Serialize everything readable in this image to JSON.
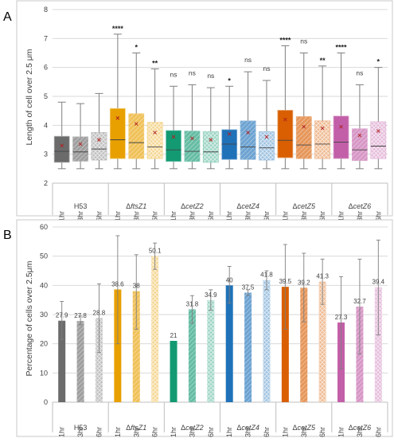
{
  "colors": {
    "H53": "#6b6b6b",
    "ftsZ1": "#e8a000",
    "cetZ2": "#139a73",
    "cetZ4": "#1f72b8",
    "cetZ5": "#d95f02",
    "cetZ6": "#c25fa8"
  },
  "chart_data": [
    {
      "panel_label": "A",
      "type": "box",
      "ylabel": "Length of cell over 2.5 μm",
      "ylim": [
        2,
        8
      ],
      "yticks": [
        2,
        3,
        4,
        5,
        6,
        7,
        8
      ],
      "grid": true,
      "groups": [
        {
          "name": "H53",
          "delta": "",
          "color_key": "H53"
        },
        {
          "name": "ftsZ1",
          "delta": "Δ",
          "color_key": "ftsZ1"
        },
        {
          "name": "cetZ2",
          "delta": "Δ",
          "color_key": "cetZ2"
        },
        {
          "name": "cetZ4",
          "delta": "Δ",
          "color_key": "cetZ4"
        },
        {
          "name": "cetZ5",
          "delta": "Δ",
          "color_key": "cetZ5"
        },
        {
          "name": "cetZ6",
          "delta": "Δ",
          "color_key": "cetZ6"
        }
      ],
      "subcategories": [
        "1hr",
        "3hr",
        "6hr"
      ],
      "boxes": [
        {
          "group": 0,
          "time": 0,
          "min": 2.5,
          "q1": 2.72,
          "median": 3.1,
          "q3": 3.62,
          "max": 4.8,
          "mean": 3.3,
          "sig": ""
        },
        {
          "group": 0,
          "time": 1,
          "min": 2.5,
          "q1": 2.76,
          "median": 3.08,
          "q3": 3.6,
          "max": 4.75,
          "mean": 3.35,
          "sig": ""
        },
        {
          "group": 0,
          "time": 2,
          "min": 2.5,
          "q1": 2.8,
          "median": 3.18,
          "q3": 3.75,
          "max": 5.1,
          "mean": 3.5,
          "sig": ""
        },
        {
          "group": 1,
          "time": 0,
          "min": 2.5,
          "q1": 2.85,
          "median": 3.5,
          "q3": 4.58,
          "max": 7.15,
          "mean": 4.25,
          "sig": "****"
        },
        {
          "group": 1,
          "time": 1,
          "min": 2.5,
          "q1": 2.85,
          "median": 3.4,
          "q3": 4.4,
          "max": 6.5,
          "mean": 4.05,
          "sig": "*"
        },
        {
          "group": 1,
          "time": 2,
          "min": 2.5,
          "q1": 2.85,
          "median": 3.25,
          "q3": 4.1,
          "max": 5.95,
          "mean": 3.75,
          "sig": "**"
        },
        {
          "group": 2,
          "time": 0,
          "min": 2.5,
          "q1": 2.75,
          "median": 3.15,
          "q3": 3.82,
          "max": 5.35,
          "mean": 3.6,
          "sig": "ns"
        },
        {
          "group": 2,
          "time": 1,
          "min": 2.5,
          "q1": 2.75,
          "median": 3.1,
          "q3": 3.8,
          "max": 5.4,
          "mean": 3.55,
          "sig": "ns"
        },
        {
          "group": 2,
          "time": 2,
          "min": 2.5,
          "q1": 2.72,
          "median": 3.08,
          "q3": 3.78,
          "max": 5.3,
          "mean": 3.5,
          "sig": "ns"
        },
        {
          "group": 3,
          "time": 0,
          "min": 2.5,
          "q1": 2.82,
          "median": 3.35,
          "q3": 3.85,
          "max": 5.35,
          "mean": 3.7,
          "sig": "*"
        },
        {
          "group": 3,
          "time": 1,
          "min": 2.5,
          "q1": 2.82,
          "median": 3.25,
          "q3": 4.15,
          "max": 5.85,
          "mean": 3.75,
          "sig": "ns"
        },
        {
          "group": 3,
          "time": 2,
          "min": 2.5,
          "q1": 2.8,
          "median": 3.22,
          "q3": 3.78,
          "max": 5.55,
          "mean": 3.6,
          "sig": "ns"
        },
        {
          "group": 4,
          "time": 0,
          "min": 2.5,
          "q1": 2.88,
          "median": 3.48,
          "q3": 4.52,
          "max": 6.75,
          "mean": 4.2,
          "sig": "****"
        },
        {
          "group": 4,
          "time": 1,
          "min": 2.5,
          "q1": 2.85,
          "median": 3.32,
          "q3": 4.3,
          "max": 6.5,
          "mean": 3.95,
          "sig": "ns"
        },
        {
          "group": 4,
          "time": 2,
          "min": 2.5,
          "q1": 2.85,
          "median": 3.35,
          "q3": 4.15,
          "max": 6.05,
          "mean": 3.9,
          "sig": "**"
        },
        {
          "group": 5,
          "time": 0,
          "min": 2.5,
          "q1": 2.85,
          "median": 3.42,
          "q3": 4.32,
          "max": 6.5,
          "mean": 3.95,
          "sig": "****"
        },
        {
          "group": 5,
          "time": 1,
          "min": 2.5,
          "q1": 2.78,
          "median": 3.15,
          "q3": 3.88,
          "max": 5.4,
          "mean": 3.65,
          "sig": "ns"
        },
        {
          "group": 5,
          "time": 2,
          "min": 2.5,
          "q1": 2.85,
          "median": 3.28,
          "q3": 4.12,
          "max": 6.0,
          "mean": 3.8,
          "sig": "*"
        }
      ]
    },
    {
      "panel_label": "B",
      "type": "bar",
      "ylabel": "Percentage of cells over 2.5μm",
      "ylim": [
        0,
        60
      ],
      "yticks": [
        0,
        10,
        20,
        30,
        40,
        50,
        60
      ],
      "grid": true,
      "groups": [
        {
          "name": "H53",
          "delta": "",
          "color_key": "H53"
        },
        {
          "name": "ftsZ1",
          "delta": "Δ",
          "color_key": "ftsZ1"
        },
        {
          "name": "cetZ2",
          "delta": "Δ",
          "color_key": "cetZ2"
        },
        {
          "name": "cetZ4",
          "delta": "Δ",
          "color_key": "cetZ4"
        },
        {
          "name": "cetZ5",
          "delta": "Δ",
          "color_key": "cetZ5"
        },
        {
          "name": "cetZ6",
          "delta": "Δ",
          "color_key": "cetZ6"
        }
      ],
      "subcategories": [
        "1hr",
        "3hr",
        "6hr"
      ],
      "bars": [
        {
          "group": 0,
          "time": 0,
          "value": 27.9,
          "label": "27.9",
          "err_low": 21.5,
          "err_high": 34.5
        },
        {
          "group": 0,
          "time": 1,
          "value": 27.8,
          "label": "27.8",
          "err_low": 26.5,
          "err_high": 29.5
        },
        {
          "group": 0,
          "time": 2,
          "value": 28.8,
          "label": "28.8",
          "err_low": 17.0,
          "err_high": 40.5
        },
        {
          "group": 1,
          "time": 0,
          "value": 38.6,
          "label": "38.6",
          "err_low": 20.0,
          "err_high": 57.0
        },
        {
          "group": 1,
          "time": 1,
          "value": 38,
          "label": "38",
          "err_low": 25.0,
          "err_high": 50.5
        },
        {
          "group": 1,
          "time": 2,
          "value": 50.1,
          "label": "50.1",
          "err_low": 45.5,
          "err_high": 54.5
        },
        {
          "group": 2,
          "time": 0,
          "value": 21,
          "label": "21",
          "err_low": 21.0,
          "err_high": 21.0
        },
        {
          "group": 2,
          "time": 1,
          "value": 31.8,
          "label": "31.8",
          "err_low": 27.0,
          "err_high": 36.5
        },
        {
          "group": 2,
          "time": 2,
          "value": 34.9,
          "label": "34.9",
          "err_low": 31.5,
          "err_high": 38.5
        },
        {
          "group": 3,
          "time": 0,
          "value": 40,
          "label": "40",
          "err_low": 34.0,
          "err_high": 46.5
        },
        {
          "group": 3,
          "time": 1,
          "value": 37.5,
          "label": "37.5",
          "err_low": 36.5,
          "err_high": 38.5
        },
        {
          "group": 3,
          "time": 2,
          "value": 41.8,
          "label": "41.8",
          "err_low": 38.5,
          "err_high": 45.0
        },
        {
          "group": 4,
          "time": 0,
          "value": 39.5,
          "label": "39.5",
          "err_low": 25.0,
          "err_high": 54.0
        },
        {
          "group": 4,
          "time": 1,
          "value": 39.2,
          "label": "39.2",
          "err_low": 27.5,
          "err_high": 51.0
        },
        {
          "group": 4,
          "time": 2,
          "value": 41.3,
          "label": "41.3",
          "err_low": 33.5,
          "err_high": 49.0
        },
        {
          "group": 5,
          "time": 0,
          "value": 27.3,
          "label": "27.3",
          "err_low": 11.5,
          "err_high": 43.0
        },
        {
          "group": 5,
          "time": 1,
          "value": 32.7,
          "label": "32.7",
          "err_low": 16.5,
          "err_high": 49.0
        },
        {
          "group": 5,
          "time": 2,
          "value": 39.4,
          "label": "39.4",
          "err_low": 23.0,
          "err_high": 55.5
        }
      ]
    }
  ]
}
